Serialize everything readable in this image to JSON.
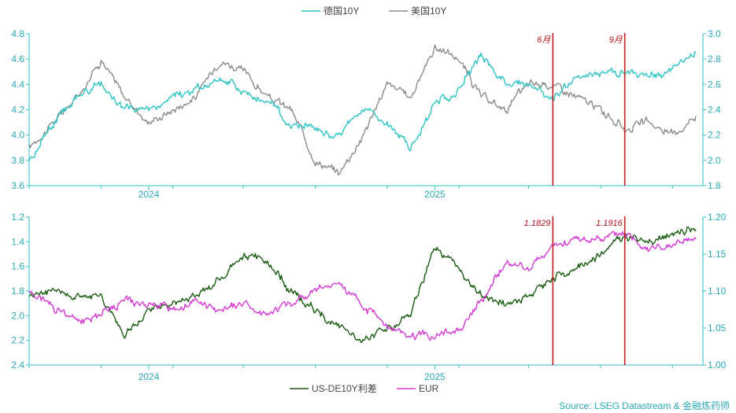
{
  "chart_data": [
    {
      "type": "line",
      "legend": [
        "德国10Y",
        "美国10Y"
      ],
      "legend_position": "top-center",
      "x_ticks": [
        "2024",
        "2025"
      ],
      "y_left": {
        "ylim": [
          3.6,
          4.8
        ],
        "ticks": [
          "3.6",
          "3.8",
          "4.0",
          "4.2",
          "4.4",
          "4.6",
          "4.8"
        ]
      },
      "y_right": {
        "ylim": [
          1.8,
          3.0
        ],
        "ticks": [
          "1.8",
          "2.0",
          "2.2",
          "2.4",
          "2.6",
          "2.8",
          "3.0"
        ]
      },
      "vlines": [
        {
          "label": "6月",
          "date": "2025-06"
        },
        {
          "label": "9月",
          "date": "2025-09"
        }
      ],
      "colors": {
        "德国10Y": "#2ec4c4",
        "美国10Y": "#8c8c8c",
        "vline": "#c0201f"
      },
      "series": [
        {
          "name": "美国10Y",
          "axis": "left",
          "x": [
            "2023-08",
            "2023-09",
            "2023-10",
            "2023-11",
            "2023-12",
            "2024-01",
            "2024-02",
            "2024-03",
            "2024-04",
            "2024-05",
            "2024-06",
            "2024-07",
            "2024-08",
            "2024-09",
            "2024-10",
            "2024-11",
            "2024-12",
            "2025-01",
            "2025-02",
            "2025-03",
            "2025-04",
            "2025-05",
            "2025-06",
            "2025-07",
            "2025-08",
            "2025-09",
            "2025-10",
            "2025-11",
            "2025-12"
          ],
          "values": [
            3.9,
            4.1,
            4.3,
            4.6,
            4.3,
            4.1,
            4.2,
            4.3,
            4.6,
            4.5,
            4.3,
            4.2,
            3.8,
            3.7,
            4.0,
            4.4,
            4.3,
            4.7,
            4.6,
            4.3,
            4.2,
            4.4,
            4.4,
            4.3,
            4.2,
            4.05,
            4.1,
            4.0,
            4.15
          ]
        },
        {
          "name": "德国10Y",
          "axis": "right",
          "x": [
            "2023-08",
            "2023-09",
            "2023-10",
            "2023-11",
            "2023-12",
            "2024-01",
            "2024-02",
            "2024-03",
            "2024-04",
            "2024-05",
            "2024-06",
            "2024-07",
            "2024-08",
            "2024-09",
            "2024-10",
            "2024-11",
            "2024-12",
            "2025-01",
            "2025-02",
            "2025-03",
            "2025-04",
            "2025-05",
            "2025-06",
            "2025-07",
            "2025-08",
            "2025-09",
            "2025-10",
            "2025-11",
            "2025-12"
          ],
          "values": [
            2.0,
            2.3,
            2.5,
            2.6,
            2.4,
            2.4,
            2.5,
            2.55,
            2.65,
            2.55,
            2.45,
            2.3,
            2.25,
            2.2,
            2.4,
            2.3,
            2.1,
            2.45,
            2.55,
            2.85,
            2.6,
            2.6,
            2.5,
            2.65,
            2.7,
            2.7,
            2.65,
            2.7,
            2.85
          ]
        }
      ]
    },
    {
      "type": "line",
      "legend": [
        "US-DE10Y利差",
        "EUR"
      ],
      "legend_position": "bottom-center",
      "x_ticks": [
        "2024",
        "2025"
      ],
      "y_left": {
        "ylim": [
          1.2,
          2.4
        ],
        "inverted": true,
        "ticks": [
          "1.2",
          "1.4",
          "1.6",
          "1.8",
          "2.0",
          "2.2",
          "2.4"
        ]
      },
      "y_right": {
        "ylim": [
          1.0,
          1.2
        ],
        "ticks": [
          "1.00",
          "1.05",
          "1.10",
          "1.15",
          "1.20"
        ]
      },
      "vlines": [
        {
          "label": "1.1829",
          "date": "2025-06"
        },
        {
          "label": "1.1916",
          "date": "2025-09"
        }
      ],
      "colors": {
        "US-DE10Y利差": "#1a5c12",
        "EUR": "#d43ad4",
        "vline": "#c0201f"
      },
      "series": [
        {
          "name": "US-DE10Y利差",
          "axis": "left",
          "x": [
            "2023-08",
            "2023-09",
            "2023-10",
            "2023-11",
            "2023-12",
            "2024-01",
            "2024-02",
            "2024-03",
            "2024-04",
            "2024-05",
            "2024-06",
            "2024-07",
            "2024-08",
            "2024-09",
            "2024-10",
            "2024-11",
            "2024-12",
            "2025-01",
            "2025-02",
            "2025-03",
            "2025-04",
            "2025-05",
            "2025-06",
            "2025-07",
            "2025-08",
            "2025-09",
            "2025-10",
            "2025-11",
            "2025-12"
          ],
          "values": [
            1.85,
            1.8,
            1.85,
            1.85,
            2.15,
            1.95,
            1.9,
            1.85,
            1.7,
            1.5,
            1.55,
            1.8,
            1.95,
            2.1,
            2.2,
            2.1,
            2.0,
            1.45,
            1.6,
            1.85,
            1.9,
            1.85,
            1.7,
            1.6,
            1.5,
            1.35,
            1.4,
            1.35,
            1.3
          ]
        },
        {
          "name": "EUR",
          "axis": "right",
          "x": [
            "2023-08",
            "2023-09",
            "2023-10",
            "2023-11",
            "2023-12",
            "2024-01",
            "2024-02",
            "2024-03",
            "2024-04",
            "2024-05",
            "2024-06",
            "2024-07",
            "2024-08",
            "2024-09",
            "2024-10",
            "2024-11",
            "2024-12",
            "2025-01",
            "2025-02",
            "2025-03",
            "2025-04",
            "2025-05",
            "2025-06",
            "2025-07",
            "2025-08",
            "2025-09",
            "2025-10",
            "2025-11",
            "2025-12"
          ],
          "values": [
            1.1,
            1.08,
            1.06,
            1.07,
            1.09,
            1.08,
            1.08,
            1.085,
            1.07,
            1.085,
            1.07,
            1.085,
            1.1,
            1.11,
            1.08,
            1.05,
            1.04,
            1.04,
            1.05,
            1.085,
            1.14,
            1.13,
            1.16,
            1.17,
            1.17,
            1.18,
            1.16,
            1.16,
            1.17
          ]
        }
      ]
    }
  ],
  "source": "Source: LSEG Datastream & 金融炼药师"
}
